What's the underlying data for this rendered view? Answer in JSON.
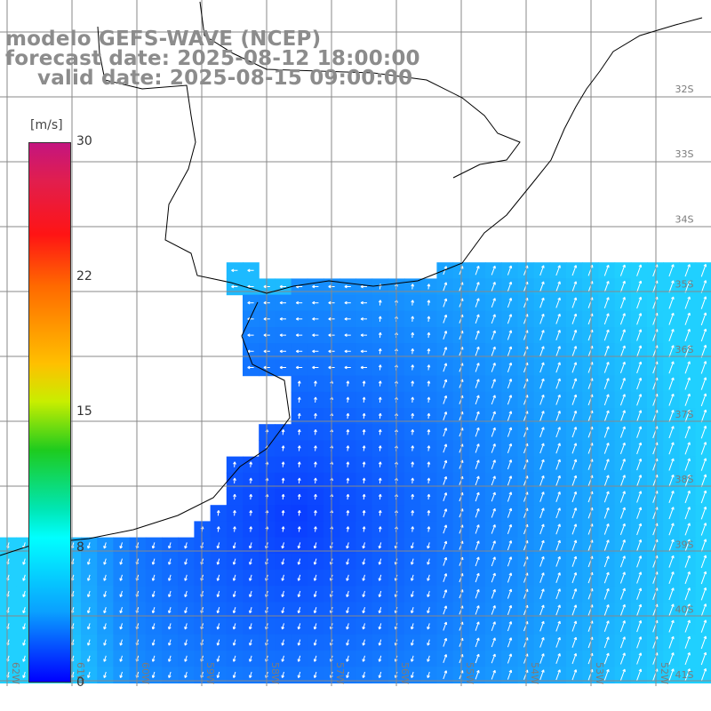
{
  "titles": {
    "line1": "modelo GEFS-WAVE (NCEP)",
    "line2": "forecast date: 2025-08-12 18:00:00",
    "line3": "valid date: 2025-08-15 09:00:00"
  },
  "colorbar": {
    "unit": "[m/s]",
    "ticks": [
      "30",
      "22",
      "15",
      "8",
      "0"
    ],
    "colors": [
      "#c4157f",
      "#e11e4e",
      "#ff1414",
      "#ff6a00",
      "#ffc000",
      "#c8ee00",
      "#1ecb1e",
      "#00e6b4",
      "#00ffff",
      "#0aa0ff",
      "#0000ff"
    ]
  },
  "grid_labels": {
    "longitudes": [
      "62W",
      "61W",
      "60W",
      "59W",
      "58W",
      "57W",
      "56W",
      "55W",
      "54W",
      "53W",
      "52W"
    ],
    "latitudes": [
      "32S",
      "33S",
      "34S",
      "35S",
      "36S",
      "37S",
      "38S",
      "39S",
      "40S",
      "41S"
    ]
  },
  "map": {
    "ocean_color_low": "#0a3cff",
    "ocean_color_high": "#20d0ff",
    "land_color": "#ffffff",
    "grid_color": "#888888",
    "coast_color": "#000000",
    "arrow_color": "#ffffff"
  }
}
